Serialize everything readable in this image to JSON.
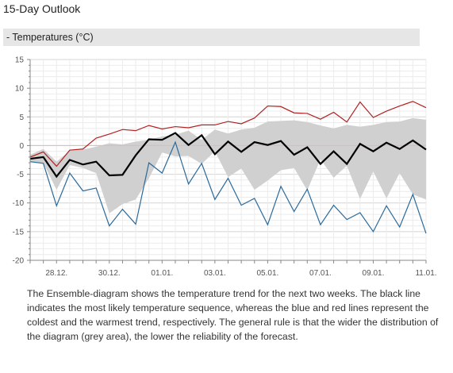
{
  "page": {
    "title": "15-Day Outlook",
    "section_label": "- Temperatures (°C)",
    "description": "The Ensemble-diagram shows the temperature trend for the next two weeks. The black line indicates the most likely temperature sequence, whereas the blue and red lines represent the coldest and the warmest trend, respectively. The general rule is that the wider the distribution of the diagram (grey area), the lower the reliability of the forecast."
  },
  "colors": {
    "band": "#d0d0d0",
    "warmest": "#b22222",
    "coldest": "#2b6a9b",
    "most_likely": "#000000",
    "grid_major": "#d4d4d4",
    "grid_minor": "#ececec",
    "axis": "#888888"
  },
  "chart_data": {
    "type": "line",
    "title": "",
    "ylim": [
      -20,
      15
    ],
    "y_ticks": [
      15,
      10,
      5,
      0,
      -5,
      -10,
      -15,
      -20
    ],
    "x_index_range": [
      0,
      30
    ],
    "x_labels": [
      {
        "i": 2,
        "label": "28.12."
      },
      {
        "i": 6,
        "label": "30.12."
      },
      {
        "i": 10,
        "label": "01.01."
      },
      {
        "i": 14,
        "label": "03.01."
      },
      {
        "i": 18,
        "label": "05.01."
      },
      {
        "i": 22,
        "label": "07.01."
      },
      {
        "i": 26,
        "label": "09.01."
      },
      {
        "i": 30,
        "label": "11.01."
      }
    ],
    "grid": true,
    "band": {
      "name": "ensemble distribution",
      "upper": [
        -1.6,
        -0.6,
        -2.8,
        -0.9,
        -0.7,
        -0.2,
        0.4,
        0.2,
        0.7,
        1.0,
        1.6,
        1.9,
        2.6,
        1.0,
        2.8,
        2.1,
        2.8,
        3.1,
        4.2,
        4.3,
        4.4,
        4.1,
        3.5,
        3.0,
        3.6,
        3.3,
        3.6,
        4.1,
        4.2,
        4.8,
        4.5
      ],
      "lower": [
        -2.8,
        -3.0,
        -7.7,
        -3.4,
        -3.9,
        -4.8,
        -11.8,
        -10.2,
        -9.4,
        -5.7,
        -1.2,
        -1.9,
        -1.8,
        -3.2,
        -1.0,
        -5.5,
        -4.0,
        -7.7,
        -6.1,
        -4.3,
        -3.9,
        -7.8,
        -2.4,
        -5.6,
        -3.5,
        -9.3,
        -4.5,
        -9.2,
        -4.8,
        -8.5,
        -9.4
      ]
    },
    "series": [
      {
        "name": "warmest",
        "color": "#b22222",
        "values": [
          -2.0,
          -1.1,
          -3.6,
          -0.8,
          -0.6,
          1.3,
          2.0,
          2.8,
          2.6,
          3.5,
          2.9,
          3.3,
          3.1,
          3.6,
          3.6,
          4.2,
          3.8,
          4.8,
          6.9,
          6.8,
          5.7,
          5.6,
          4.6,
          5.8,
          4.1,
          7.6,
          4.9,
          6.0,
          6.9,
          7.7,
          6.6
        ]
      },
      {
        "name": "most likely",
        "color": "#000000",
        "values": [
          -2.3,
          -2.0,
          -5.4,
          -2.5,
          -3.3,
          -2.8,
          -5.2,
          -5.1,
          -1.7,
          1.1,
          1.0,
          2.2,
          0.1,
          1.8,
          -1.5,
          0.7,
          -1.1,
          0.6,
          0.1,
          0.8,
          -1.6,
          -0.3,
          -3.2,
          -1.0,
          -3.2,
          0.3,
          -1.0,
          0.5,
          -0.6,
          0.9,
          -0.7
        ]
      },
      {
        "name": "coldest",
        "color": "#2b6a9b",
        "values": [
          -2.8,
          -3.1,
          -10.5,
          -4.8,
          -7.9,
          -7.4,
          -14.0,
          -11.1,
          -13.7,
          -3.0,
          -4.8,
          0.6,
          -6.7,
          -3.1,
          -9.4,
          -5.7,
          -10.4,
          -9.2,
          -13.8,
          -7.1,
          -11.5,
          -7.6,
          -13.8,
          -10.4,
          -12.9,
          -11.7,
          -15.0,
          -10.5,
          -14.2,
          -8.5,
          -15.3
        ]
      }
    ]
  }
}
